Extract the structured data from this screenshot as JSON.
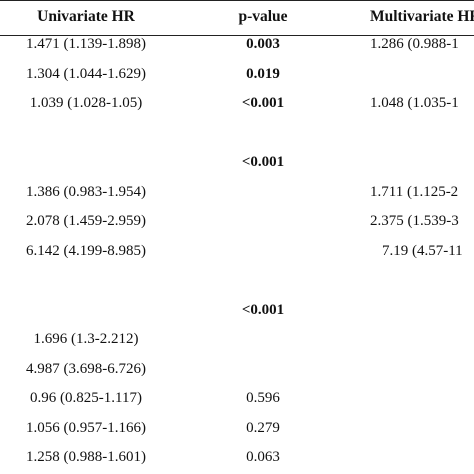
{
  "table": {
    "headers": {
      "univariate_hr": "Univariate HR",
      "p_value": "p-value",
      "multivariate_hr": "Multivariate HR"
    },
    "rows": [
      {
        "univariate": "1.471 (1.139-1.898)",
        "p": "0.003",
        "p_bold": true,
        "multivariate": "1.286 (0.988-1"
      },
      {
        "univariate": "1.304 (1.044-1.629)",
        "p": "0.019",
        "p_bold": true,
        "multivariate": ""
      },
      {
        "univariate": "1.039 (1.028-1.05)",
        "p": "<0.001",
        "p_bold": true,
        "multivariate": "1.048 (1.035-1"
      },
      {
        "univariate": "",
        "p": "",
        "p_bold": false,
        "multivariate": ""
      },
      {
        "univariate": "",
        "p": "<0.001",
        "p_bold": true,
        "multivariate": ""
      },
      {
        "univariate": "1.386 (0.983-1.954)",
        "p": "",
        "p_bold": false,
        "multivariate": "1.711 (1.125-2"
      },
      {
        "univariate": "2.078 (1.459-2.959)",
        "p": "",
        "p_bold": false,
        "multivariate": "2.375 (1.539-3"
      },
      {
        "univariate": "6.142 (4.199-8.985)",
        "p": "",
        "p_bold": false,
        "multivariate": "7.19 (4.57-11"
      },
      {
        "univariate": "",
        "p": "",
        "p_bold": false,
        "multivariate": ""
      },
      {
        "univariate": "",
        "p": "<0.001",
        "p_bold": true,
        "multivariate": ""
      },
      {
        "univariate": "1.696 (1.3-2.212)",
        "p": "",
        "p_bold": false,
        "multivariate": ""
      },
      {
        "univariate": "4.987 (3.698-6.726)",
        "p": "",
        "p_bold": false,
        "multivariate": ""
      },
      {
        "univariate": "0.96 (0.825-1.117)",
        "p": "0.596",
        "p_bold": false,
        "multivariate": ""
      },
      {
        "univariate": "1.056 (0.957-1.166)",
        "p": "0.279",
        "p_bold": false,
        "multivariate": ""
      },
      {
        "univariate": "1.258 (0.988-1.601)",
        "p": "0.063",
        "p_bold": false,
        "multivariate": ""
      }
    ]
  }
}
